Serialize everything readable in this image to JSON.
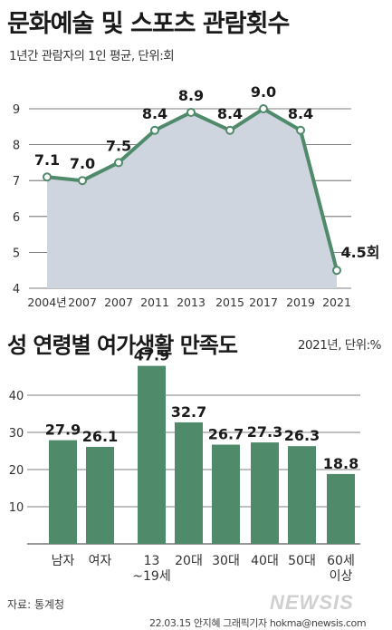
{
  "header": {
    "title1": "문화예술 및 스포츠 관람횟수",
    "subtitle1": "1년간 관람자의 1인 평균, 단위:회",
    "title2": "성 연령별 여가생활 만족도",
    "subtitle2": "2021년, 단위:%"
  },
  "footer": {
    "source": "자료: 통계청",
    "credit": "22.03.15 안지혜 그래픽기자 hokma@newsis.com",
    "logo": "NEWSIS"
  },
  "colors": {
    "green": "#4f8a6a",
    "area": "#cfd5df",
    "grid": "#555555"
  },
  "chart_data": [
    {
      "type": "area",
      "categories": [
        "2004년",
        "2007",
        "2007",
        "2011",
        "2013",
        "2015",
        "2017",
        "2019",
        "2021"
      ],
      "values": [
        7.1,
        7.0,
        7.5,
        8.4,
        8.9,
        8.4,
        9.0,
        8.4,
        4.5
      ],
      "value_labels": [
        "7.1",
        "7.0",
        "7.5",
        "8.4",
        "8.9",
        "8.4",
        "9.0",
        "8.4",
        "4.5회"
      ],
      "ylim": [
        4,
        9
      ],
      "yticks": [
        "4",
        "5",
        "6",
        "7",
        "8",
        "9"
      ],
      "grid": true
    },
    {
      "type": "bar",
      "categories": [
        "남자",
        "여자",
        "13\n~19세",
        "20대",
        "30대",
        "40대",
        "50대",
        "60세\n이상"
      ],
      "values": [
        27.9,
        26.1,
        47.9,
        32.7,
        26.7,
        27.3,
        26.3,
        18.8
      ],
      "value_labels": [
        "27.9",
        "26.1",
        "47.9",
        "32.7",
        "26.7",
        "27.3",
        "26.3",
        "18.8"
      ],
      "ylim": [
        0,
        50
      ],
      "yticks": [
        "10",
        "20",
        "30",
        "40"
      ],
      "grid": true
    }
  ]
}
